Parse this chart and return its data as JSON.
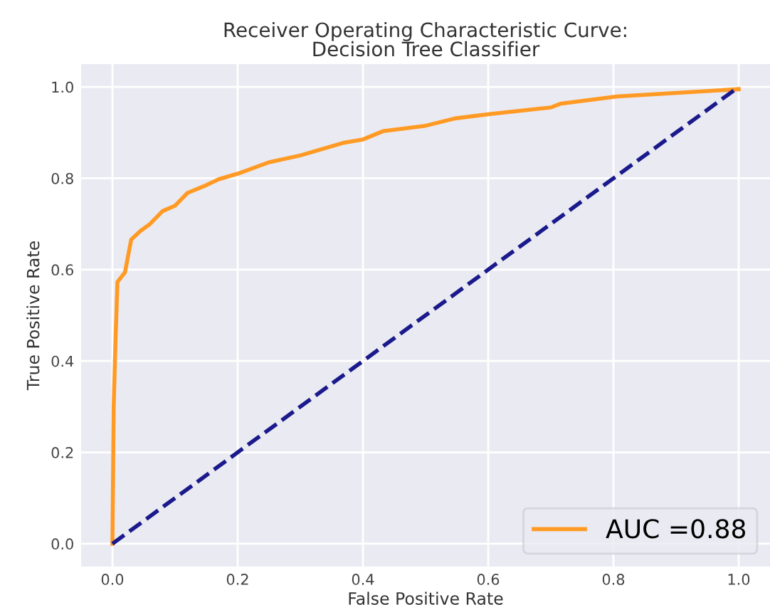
{
  "chart_data": {
    "type": "line",
    "title": "Receiver Operating Characteristic Curve:\nDecision Tree Classifier",
    "xlabel": "False Positive Rate",
    "ylabel": "True Positive Rate",
    "series": [
      {
        "name": "AUC =0.88",
        "color": "#ff9a24",
        "line_style": "solid",
        "x": [
          0,
          0.002,
          0.005,
          0.008,
          0.02,
          0.025,
          0.03,
          0.045,
          0.06,
          0.08,
          0.1,
          0.12,
          0.15,
          0.17,
          0.2,
          0.25,
          0.3,
          0.37,
          0.4,
          0.432,
          0.5,
          0.547,
          0.6,
          0.7,
          0.715,
          0.806,
          1.0
        ],
        "values": [
          0,
          0.3,
          0.45,
          0.573,
          0.594,
          0.63,
          0.666,
          0.685,
          0.7,
          0.728,
          0.74,
          0.768,
          0.785,
          0.798,
          0.81,
          0.835,
          0.85,
          0.878,
          0.885,
          0.903,
          0.915,
          0.931,
          0.94,
          0.955,
          0.963,
          0.979,
          0.995
        ]
      },
      {
        "color": "#1a1a8c",
        "line_style": "dashed",
        "x": [
          0,
          1
        ],
        "values": [
          0,
          1
        ]
      }
    ],
    "xlim": [
      -0.05,
      1.05
    ],
    "ylim": [
      -0.05,
      1.05
    ],
    "xticks": [
      {
        "value": 0,
        "label": "0.0"
      },
      0.2,
      0.4,
      0.6,
      0.8,
      {
        "value": 1,
        "label": "1.0"
      }
    ],
    "yticks": [
      {
        "value": 0,
        "label": "0.0"
      },
      0.2,
      0.4,
      0.6,
      0.8,
      {
        "value": 1,
        "label": "1.0"
      }
    ],
    "grid": true,
    "legend": "bottom right"
  }
}
